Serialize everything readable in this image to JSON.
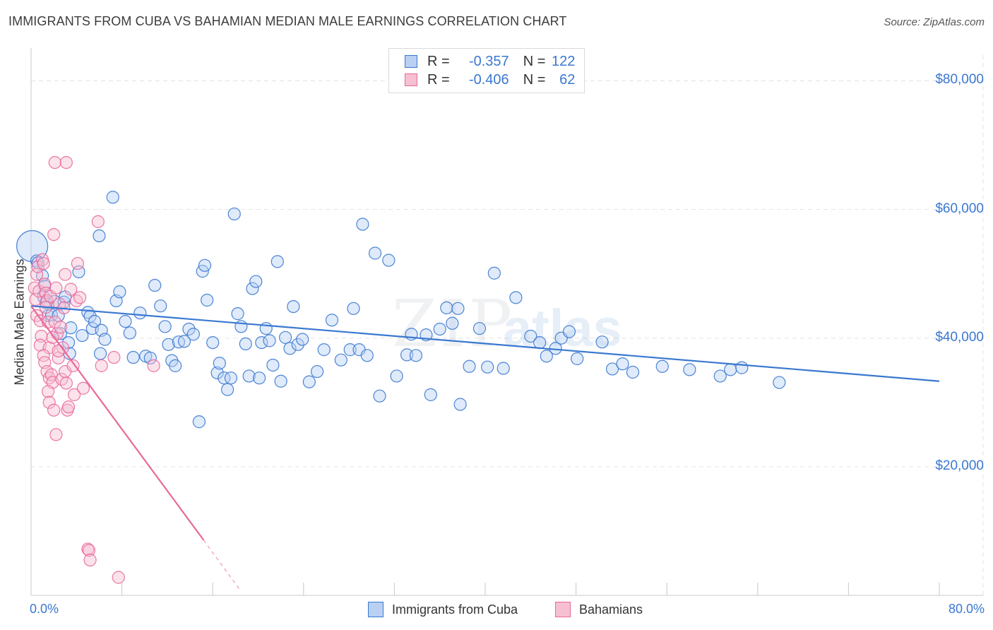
{
  "header": {
    "title": "IMMIGRANTS FROM CUBA VS BAHAMIAN MEDIAN MALE EARNINGS CORRELATION CHART",
    "source": "Source: ZipAtlas.com"
  },
  "legend_top": {
    "rows": [
      {
        "r_label": "R =",
        "r_value": "-0.357",
        "n_label": "N =",
        "n_value": "122"
      },
      {
        "r_label": "R =",
        "r_value": "-0.406",
        "n_label": "N =",
        "n_value": "62"
      }
    ]
  },
  "legend_bottom": [
    "Immigrants from Cuba",
    "Bahamians"
  ],
  "colors": {
    "blue": "#3a78d0",
    "blue_fill": "#b9d0f3",
    "pink": "#e8699a",
    "pink_fill": "#f6bfd2",
    "grid": "#e3e3e3"
  },
  "chart_data": {
    "type": "scatter",
    "title": "IMMIGRANTS FROM CUBA VS BAHAMIAN MEDIAN MALE EARNINGS CORRELATION CHART",
    "xlabel": "",
    "ylabel": "Median Male Earnings",
    "xlim": [
      0,
      80
    ],
    "ylim": [
      0,
      84000
    ],
    "x_tick_labels": [
      "0.0%",
      "80.0%"
    ],
    "y_tick_labels": [
      "$20,000",
      "$40,000",
      "$60,000",
      "$80,000"
    ],
    "y_ticks": [
      20000,
      40000,
      60000,
      80000
    ],
    "grid": true,
    "legend_position": "top-center",
    "series": [
      {
        "name": "Immigrants from Cuba",
        "color": "#3a78d0",
        "r": -0.357,
        "n": 122,
        "trend": {
          "x": [
            0,
            80
          ],
          "y": [
            45000,
            33300
          ]
        },
        "points": [
          [
            0.1,
            54300
          ],
          [
            0.5,
            52000
          ],
          [
            0.6,
            51700
          ],
          [
            1.0,
            49700
          ],
          [
            1.2,
            48100
          ],
          [
            1.1,
            46400
          ],
          [
            1.3,
            45500
          ],
          [
            1.5,
            43500
          ],
          [
            1.8,
            43600
          ],
          [
            2.1,
            45700
          ],
          [
            2.4,
            43500
          ],
          [
            2.9,
            45600
          ],
          [
            3.0,
            46400
          ],
          [
            2.6,
            40700
          ],
          [
            3.3,
            39300
          ],
          [
            3.5,
            41600
          ],
          [
            3.4,
            37600
          ],
          [
            4.2,
            50300
          ],
          [
            4.5,
            40400
          ],
          [
            5.0,
            44000
          ],
          [
            5.2,
            43400
          ],
          [
            5.4,
            41500
          ],
          [
            5.6,
            42600
          ],
          [
            6.1,
            37600
          ],
          [
            6.2,
            41200
          ],
          [
            6.5,
            39800
          ],
          [
            6.0,
            55900
          ],
          [
            7.2,
            61900
          ],
          [
            7.5,
            45800
          ],
          [
            7.8,
            47200
          ],
          [
            8.3,
            42600
          ],
          [
            8.7,
            40800
          ],
          [
            9.0,
            37000
          ],
          [
            9.6,
            43900
          ],
          [
            10.1,
            37200
          ],
          [
            10.5,
            36900
          ],
          [
            10.9,
            48200
          ],
          [
            11.4,
            45000
          ],
          [
            11.8,
            41800
          ],
          [
            12.4,
            36500
          ],
          [
            12.7,
            35700
          ],
          [
            12.1,
            39000
          ],
          [
            13.0,
            39400
          ],
          [
            13.5,
            39500
          ],
          [
            13.9,
            41400
          ],
          [
            14.3,
            40600
          ],
          [
            14.8,
            27000
          ],
          [
            15.1,
            50400
          ],
          [
            15.3,
            51300
          ],
          [
            15.5,
            45900
          ],
          [
            16.0,
            39300
          ],
          [
            16.4,
            34600
          ],
          [
            16.6,
            36100
          ],
          [
            17.0,
            33800
          ],
          [
            17.3,
            32000
          ],
          [
            17.6,
            33800
          ],
          [
            17.9,
            59300
          ],
          [
            18.2,
            43800
          ],
          [
            18.5,
            41800
          ],
          [
            18.9,
            39100
          ],
          [
            19.2,
            34100
          ],
          [
            19.5,
            47700
          ],
          [
            19.8,
            48800
          ],
          [
            20.1,
            33800
          ],
          [
            20.3,
            39300
          ],
          [
            20.7,
            41500
          ],
          [
            21.0,
            39600
          ],
          [
            21.3,
            35800
          ],
          [
            21.7,
            51900
          ],
          [
            22.0,
            33300
          ],
          [
            22.4,
            40100
          ],
          [
            22.8,
            38400
          ],
          [
            23.1,
            44900
          ],
          [
            23.5,
            39000
          ],
          [
            23.9,
            39800
          ],
          [
            24.5,
            33200
          ],
          [
            25.2,
            34800
          ],
          [
            25.8,
            38200
          ],
          [
            26.5,
            42800
          ],
          [
            27.3,
            36600
          ],
          [
            28.1,
            38200
          ],
          [
            28.4,
            44600
          ],
          [
            28.9,
            38200
          ],
          [
            29.2,
            57700
          ],
          [
            29.6,
            37300
          ],
          [
            30.3,
            53200
          ],
          [
            30.7,
            31000
          ],
          [
            31.5,
            52100
          ],
          [
            32.2,
            34100
          ],
          [
            33.1,
            37400
          ],
          [
            33.5,
            40600
          ],
          [
            33.9,
            37300
          ],
          [
            34.8,
            40500
          ],
          [
            35.2,
            31200
          ],
          [
            36.0,
            41400
          ],
          [
            36.6,
            44700
          ],
          [
            37.1,
            42300
          ],
          [
            37.6,
            44600
          ],
          [
            37.8,
            29700
          ],
          [
            38.6,
            35600
          ],
          [
            39.5,
            41500
          ],
          [
            40.2,
            35500
          ],
          [
            40.8,
            50100
          ],
          [
            41.6,
            35300
          ],
          [
            42.7,
            46300
          ],
          [
            44.0,
            40300
          ],
          [
            44.8,
            39300
          ],
          [
            45.4,
            37200
          ],
          [
            46.2,
            38400
          ],
          [
            46.7,
            40000
          ],
          [
            47.4,
            41000
          ],
          [
            48.1,
            36800
          ],
          [
            50.3,
            39400
          ],
          [
            51.2,
            35200
          ],
          [
            52.1,
            36000
          ],
          [
            53.0,
            34700
          ],
          [
            55.6,
            35600
          ],
          [
            58.0,
            35100
          ],
          [
            60.7,
            34100
          ],
          [
            61.6,
            35100
          ],
          [
            62.6,
            35400
          ],
          [
            65.9,
            33100
          ]
        ]
      },
      {
        "name": "Bahamians",
        "color": "#e8699a",
        "r": -0.406,
        "n": 62,
        "trend": {
          "x": [
            0,
            15.2
          ],
          "y": [
            45000,
            8600
          ]
        },
        "trend_dashed": {
          "x": [
            15.2,
            18.5
          ],
          "y": [
            8600,
            600
          ]
        },
        "points": [
          [
            0.3,
            47800
          ],
          [
            0.4,
            46000
          ],
          [
            0.5,
            49900
          ],
          [
            0.6,
            51100
          ],
          [
            0.7,
            47300
          ],
          [
            0.5,
            43500
          ],
          [
            0.8,
            42700
          ],
          [
            0.9,
            40300
          ],
          [
            0.8,
            38900
          ],
          [
            1.0,
            52200
          ],
          [
            1.1,
            51600
          ],
          [
            1.2,
            48400
          ],
          [
            1.3,
            47000
          ],
          [
            1.4,
            45800
          ],
          [
            1.3,
            44800
          ],
          [
            1.5,
            42500
          ],
          [
            1.6,
            38500
          ],
          [
            1.1,
            37300
          ],
          [
            1.2,
            36200
          ],
          [
            1.4,
            34800
          ],
          [
            1.6,
            33800
          ],
          [
            1.8,
            34300
          ],
          [
            1.9,
            33100
          ],
          [
            1.5,
            31700
          ],
          [
            1.6,
            30000
          ],
          [
            2.0,
            28800
          ],
          [
            2.1,
            42500
          ],
          [
            2.3,
            40700
          ],
          [
            2.5,
            45300
          ],
          [
            2.6,
            41700
          ],
          [
            2.4,
            36900
          ],
          [
            2.7,
            33600
          ],
          [
            2.8,
            38500
          ],
          [
            3.0,
            34800
          ],
          [
            3.1,
            33000
          ],
          [
            3.2,
            28800
          ],
          [
            3.3,
            29300
          ],
          [
            3.5,
            47600
          ],
          [
            3.7,
            35700
          ],
          [
            3.8,
            31200
          ],
          [
            4.0,
            45800
          ],
          [
            4.3,
            46300
          ],
          [
            4.6,
            32200
          ],
          [
            2.0,
            56100
          ],
          [
            2.1,
            67300
          ],
          [
            3.1,
            67300
          ],
          [
            4.1,
            51600
          ],
          [
            3.0,
            49900
          ],
          [
            2.2,
            25000
          ],
          [
            5.9,
            58100
          ],
          [
            6.2,
            35700
          ],
          [
            7.3,
            37000
          ],
          [
            10.8,
            35700
          ],
          [
            5.0,
            7200
          ],
          [
            5.1,
            7000
          ],
          [
            5.2,
            5500
          ],
          [
            7.7,
            2800
          ],
          [
            1.9,
            40100
          ],
          [
            2.4,
            38000
          ],
          [
            2.9,
            44700
          ],
          [
            1.7,
            46500
          ],
          [
            2.2,
            47800
          ]
        ]
      }
    ]
  }
}
